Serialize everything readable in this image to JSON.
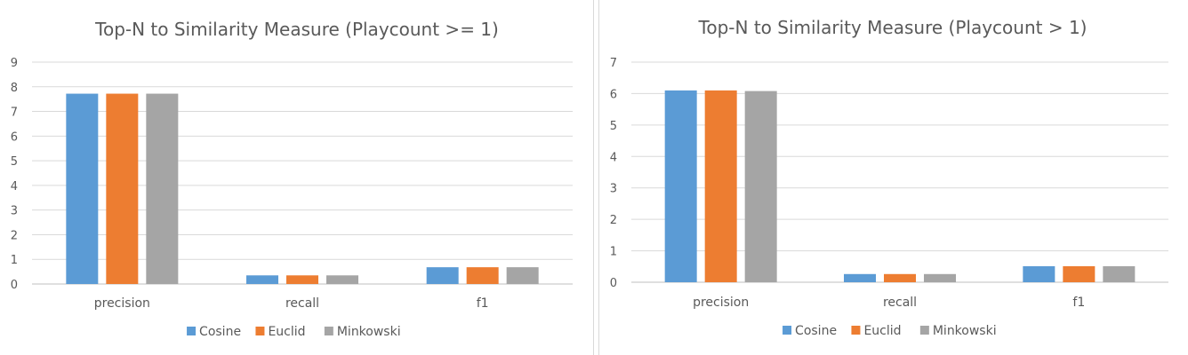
{
  "chart_data": [
    {
      "type": "bar",
      "title": "Top-N to Similarity Measure (Playcount >= 1)",
      "categories": [
        "precision",
        "recall",
        "f1"
      ],
      "series": [
        {
          "name": "Cosine",
          "color": "#5b9bd5",
          "values": [
            7.72,
            0.35,
            0.68
          ]
        },
        {
          "name": "Euclid",
          "color": "#ed7d31",
          "values": [
            7.72,
            0.35,
            0.68
          ]
        },
        {
          "name": "Minkowski",
          "color": "#a5a5a5",
          "values": [
            7.72,
            0.35,
            0.68
          ]
        }
      ],
      "ylim": [
        0,
        9
      ],
      "yticks": [
        0,
        1,
        2,
        3,
        4,
        5,
        6,
        7,
        8,
        9
      ],
      "grid": true,
      "legend": "bottom",
      "xlabel": "",
      "ylabel": ""
    },
    {
      "type": "bar",
      "title": "Top-N to Similarity Measure (Playcount > 1)",
      "categories": [
        "precision",
        "recall",
        "f1"
      ],
      "series": [
        {
          "name": "Cosine",
          "color": "#5b9bd5",
          "values": [
            6.1,
            0.26,
            0.51
          ]
        },
        {
          "name": "Euclid",
          "color": "#ed7d31",
          "values": [
            6.1,
            0.26,
            0.51
          ]
        },
        {
          "name": "Minkowski",
          "color": "#a5a5a5",
          "values": [
            6.08,
            0.26,
            0.51
          ]
        }
      ],
      "ylim": [
        0,
        7
      ],
      "yticks": [
        0,
        1,
        2,
        3,
        4,
        5,
        6,
        7
      ],
      "grid": true,
      "legend": "bottom",
      "xlabel": "",
      "ylabel": ""
    }
  ]
}
